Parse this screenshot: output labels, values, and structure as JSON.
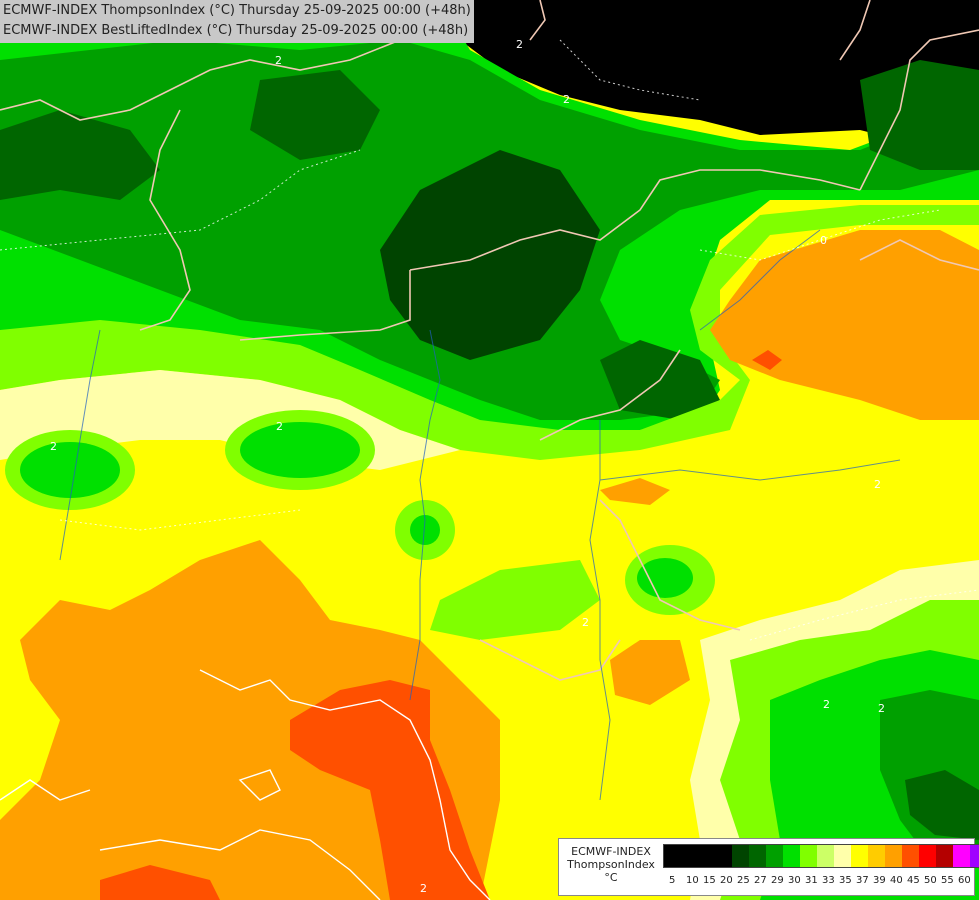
{
  "header": {
    "line1": "ECMWF-INDEX ThompsonIndex (°C) Thursday 25-09-2025 00:00 (+48h)",
    "line2": "ECMWF-INDEX BestLiftedIndex (°C) Thursday 25-09-2025 00:00 (+48h)"
  },
  "legend": {
    "title_line1": "ECMWF-INDEX",
    "title_line2": "ThompsonIndex",
    "unit": "°C",
    "ticks": [
      "5",
      "10",
      "15",
      "20",
      "25",
      "27",
      "29",
      "30",
      "31",
      "33",
      "35",
      "37",
      "39",
      "40",
      "45",
      "50",
      "55",
      "60"
    ],
    "colors": [
      "#000000",
      "#000000",
      "#000000",
      "#000000",
      "#004400",
      "#006600",
      "#00a000",
      "#00e000",
      "#80ff00",
      "#ccff66",
      "#ffffaa",
      "#ffff00",
      "#ffcc00",
      "#ffa000",
      "#ff5000",
      "#ff0000",
      "#b40000",
      "#ff00ff",
      "#a000ff",
      "#7000ff",
      "#0000ff"
    ]
  },
  "map": {
    "contour_labels": [
      "2",
      "2",
      "2",
      "2",
      "2",
      "2",
      "0",
      "2",
      "2",
      "2",
      "2"
    ]
  }
}
